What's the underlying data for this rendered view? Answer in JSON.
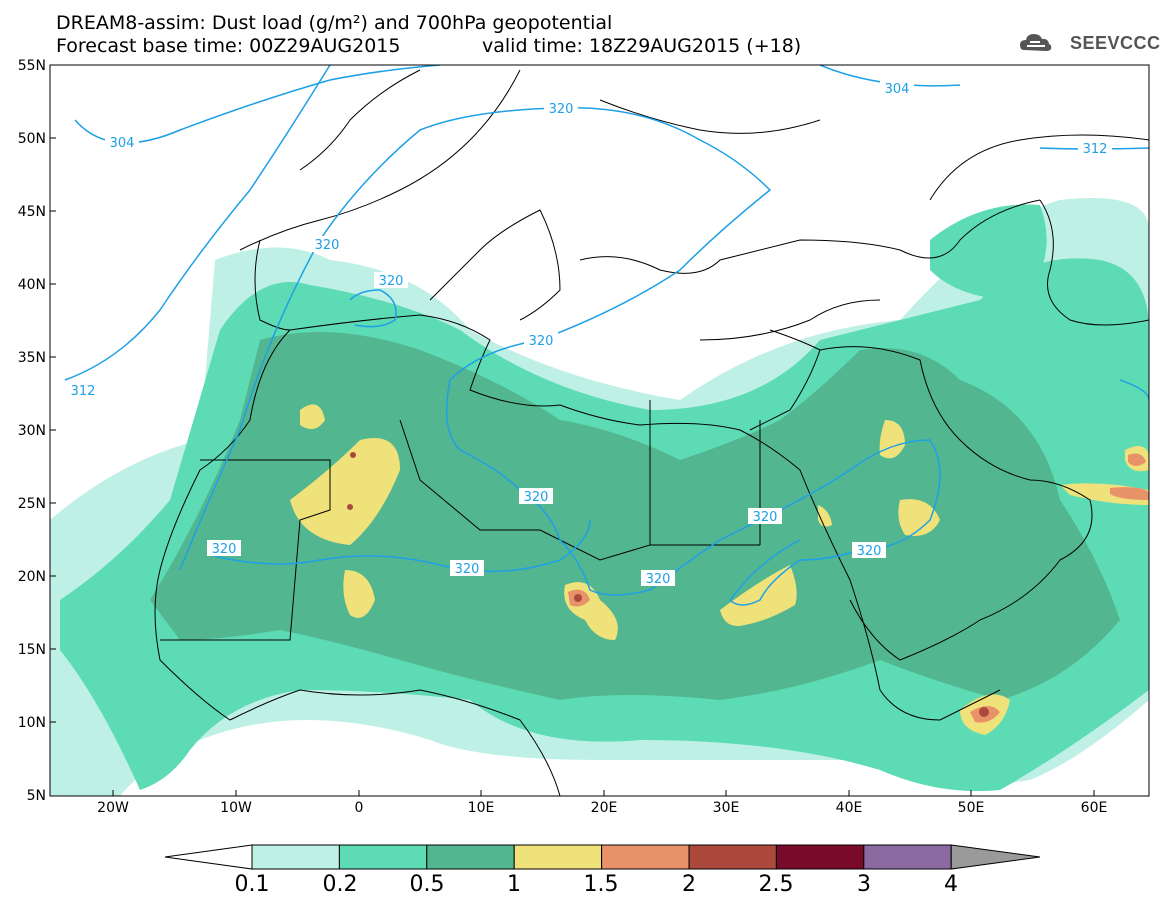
{
  "header": {
    "line1": "DREAM8-assim: Dust load (g/m²) and 700hPa geopotential",
    "line2": "Forecast base time: 00Z29AUG2015",
    "line3": "valid time: 18Z29AUG2015 (+18)"
  },
  "logo": {
    "text": "SEEVCCC",
    "icon": "cloud-icon"
  },
  "axes": {
    "lat_labels": [
      "55N",
      "50N",
      "45N",
      "40N",
      "35N",
      "30N",
      "25N",
      "20N",
      "15N",
      "10N",
      "5N"
    ],
    "lon_labels": [
      "20W",
      "10W",
      "0",
      "10E",
      "20E",
      "30E",
      "40E",
      "50E",
      "60E"
    ]
  },
  "contours": {
    "labels": [
      "304",
      "304",
      "320",
      "312",
      "320",
      "320",
      "312",
      "320",
      "320",
      "320",
      "320",
      "320",
      "320",
      "320"
    ]
  },
  "colorbar": {
    "ticks": [
      "0.1",
      "0.2",
      "0.5",
      "1",
      "1.5",
      "2",
      "2.5",
      "3",
      "4"
    ],
    "colors": [
      "#ffffff",
      "#bff0e6",
      "#5ddbb5",
      "#52b690",
      "#f0e27a",
      "#e8926a",
      "#ab4a3c",
      "#7a0a2a",
      "#8a6aa0",
      "#9a9a9a"
    ]
  }
}
